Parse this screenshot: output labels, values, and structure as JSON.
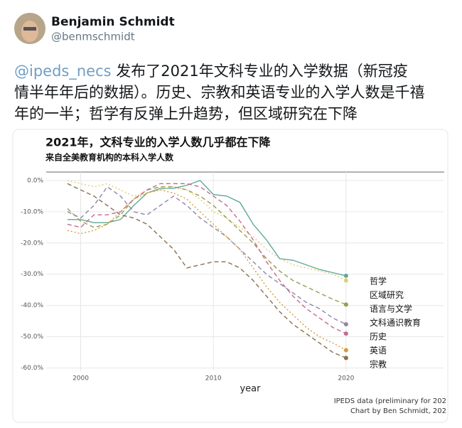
{
  "tweet": {
    "name": "Benjamin Schmidt",
    "handle": "@benmschmidt",
    "mention": "@ipeds_necs",
    "text_lines": [
      " 发布了2021年文科专业的入学数据（新冠疫",
      "情半年年后的数据）。历史、宗教和英语专业的入学人数是千禧",
      "年的一半；哲学有反弹上升趋势，但区域研究在下降"
    ]
  },
  "chart_data": {
    "type": "line",
    "title": "2021年，文科专业的入学人数几乎都在下降",
    "subtitle": "来自全美教育机构的本科入学人数",
    "xlabel": "year",
    "footer": [
      "IPEDS data (preliminary for 202",
      "Chart by Ben Schmidt, 202"
    ],
    "x": [
      1999,
      2000,
      2001,
      2002,
      2003,
      2004,
      2005,
      2006,
      2007,
      2008,
      2009,
      2010,
      2011,
      2012,
      2013,
      2014,
      2015,
      2016,
      2017,
      2018,
      2019,
      2020
    ],
    "xlim": [
      1997.4,
      2027.4
    ],
    "xticks": [
      2000,
      2010,
      2020
    ],
    "ylim": [
      -61,
      2.7
    ],
    "yticks": [
      {
        "value": 0,
        "label": "0.0%"
      },
      {
        "value": -10,
        "label": "-10.0%"
      },
      {
        "value": -20,
        "label": "-20.0%"
      },
      {
        "value": -30,
        "label": "-30.0%"
      },
      {
        "value": -40,
        "label": "-40.0%"
      },
      {
        "value": -50,
        "label": "-50.0%"
      },
      {
        "value": -60,
        "label": "-60.0%"
      }
    ],
    "grid": true,
    "series": [
      {
        "name": "哲学",
        "color": "#5fa89a",
        "style": "solid",
        "values": [
          -12.5,
          -12.5,
          -13.5,
          -13.5,
          -12.5,
          -8,
          -4,
          -2.5,
          -2.5,
          -1.5,
          0,
          -4.5,
          -5,
          -7,
          -14,
          -19,
          -25,
          -25.5,
          -27,
          -28.5,
          -29.5,
          -30.5
        ]
      },
      {
        "name": "区域研究",
        "color": "#e0cf6e",
        "style": "dotted",
        "values": [
          0,
          -1,
          -2,
          -1,
          -3,
          -5,
          -4,
          -3,
          -2,
          -3,
          -6,
          -10,
          -12,
          -15,
          -18,
          -22,
          -25,
          -27,
          -28,
          -29,
          -30,
          -32
        ]
      },
      {
        "name": "语言与文学",
        "color": "#9a9a50",
        "style": "dashed",
        "values": [
          -9,
          -13,
          -15,
          -14,
          -11,
          -6,
          -3,
          -2,
          -2,
          -3,
          -5,
          -8,
          -12,
          -16,
          -20,
          -25,
          -29,
          -32,
          -34,
          -36,
          -38,
          -39.7
        ]
      },
      {
        "name": "文科通识教育",
        "color": "#8f86a8",
        "style": "dashed",
        "values": [
          -10,
          -12,
          -8,
          -2,
          -5,
          -10,
          -11,
          -8,
          -5,
          -8,
          -12,
          -15,
          -18,
          -22,
          -26,
          -30,
          -33,
          -36,
          -39,
          -41,
          -44,
          -46
        ]
      },
      {
        "name": "历史",
        "color": "#c66a8f",
        "style": "dashed",
        "values": [
          -14,
          -15,
          -11,
          -11,
          -10,
          -6,
          -3,
          -1,
          -1,
          -1,
          -2,
          -5,
          -8,
          -13,
          -19,
          -26,
          -32,
          -37,
          -41,
          -44,
          -47,
          -49
        ]
      },
      {
        "name": "英语",
        "color": "#d89a3a",
        "style": "dotted",
        "values": [
          -16,
          -17,
          -16,
          -14,
          -10,
          -6,
          -4,
          -3,
          -4,
          -6,
          -10,
          -14,
          -18,
          -22,
          -28,
          -34,
          -39,
          -43,
          -47,
          -50,
          -52,
          -54.3
        ]
      },
      {
        "name": "宗教",
        "color": "#8b6f4b",
        "style": "dashed",
        "values": [
          -1,
          -3,
          -5,
          -8,
          -11,
          -12,
          -14,
          -18,
          -22,
          -28,
          -27,
          -26,
          -26,
          -28,
          -32,
          -37,
          -42,
          -46,
          -49,
          -52,
          -55,
          -56.8
        ]
      }
    ]
  }
}
